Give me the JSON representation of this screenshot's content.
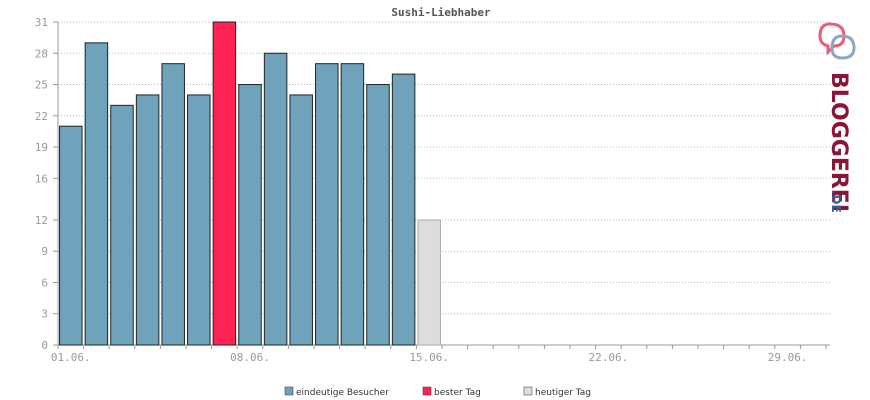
{
  "chart_data": {
    "type": "bar",
    "title": "Sushi-Liebhaber",
    "xlabel": "",
    "ylabel": "",
    "ylim": [
      0,
      31
    ],
    "y_ticks": [
      0,
      3,
      6,
      9,
      12,
      16,
      19,
      22,
      25,
      28,
      31
    ],
    "x_tick_labels": [
      "01.06.",
      "08.06.",
      "15.06.",
      "22.06.",
      "29.06."
    ],
    "grid": true,
    "days_total": 30,
    "series": [
      {
        "name": "eindeutige Besucher",
        "color": "#6fa3bb",
        "days": [
          "01.06.",
          "02.06.",
          "03.06.",
          "04.06.",
          "05.06.",
          "06.06.",
          "07.06.",
          "08.06.",
          "09.06.",
          "10.06.",
          "11.06.",
          "12.06.",
          "13.06.",
          "14.06."
        ],
        "values": [
          21,
          29,
          23,
          24,
          27,
          24,
          31,
          25,
          28,
          24,
          27,
          27,
          25,
          26
        ]
      },
      {
        "name": "bester Tag",
        "color": "#ff2255",
        "days": [
          "07.06."
        ],
        "values": [
          31
        ]
      },
      {
        "name": "heutiger Tag",
        "color": "#dddddd",
        "days": [
          "15.06."
        ],
        "values": [
          12
        ]
      }
    ],
    "legend_position": "bottom-center"
  },
  "logo": {
    "text_main": "BLOGGEREI",
    "text_suffix": ".DE",
    "color_main": "#8a1538",
    "color_suffix": "#3a5f8a",
    "alt": "BLOGGEREI.DE"
  }
}
